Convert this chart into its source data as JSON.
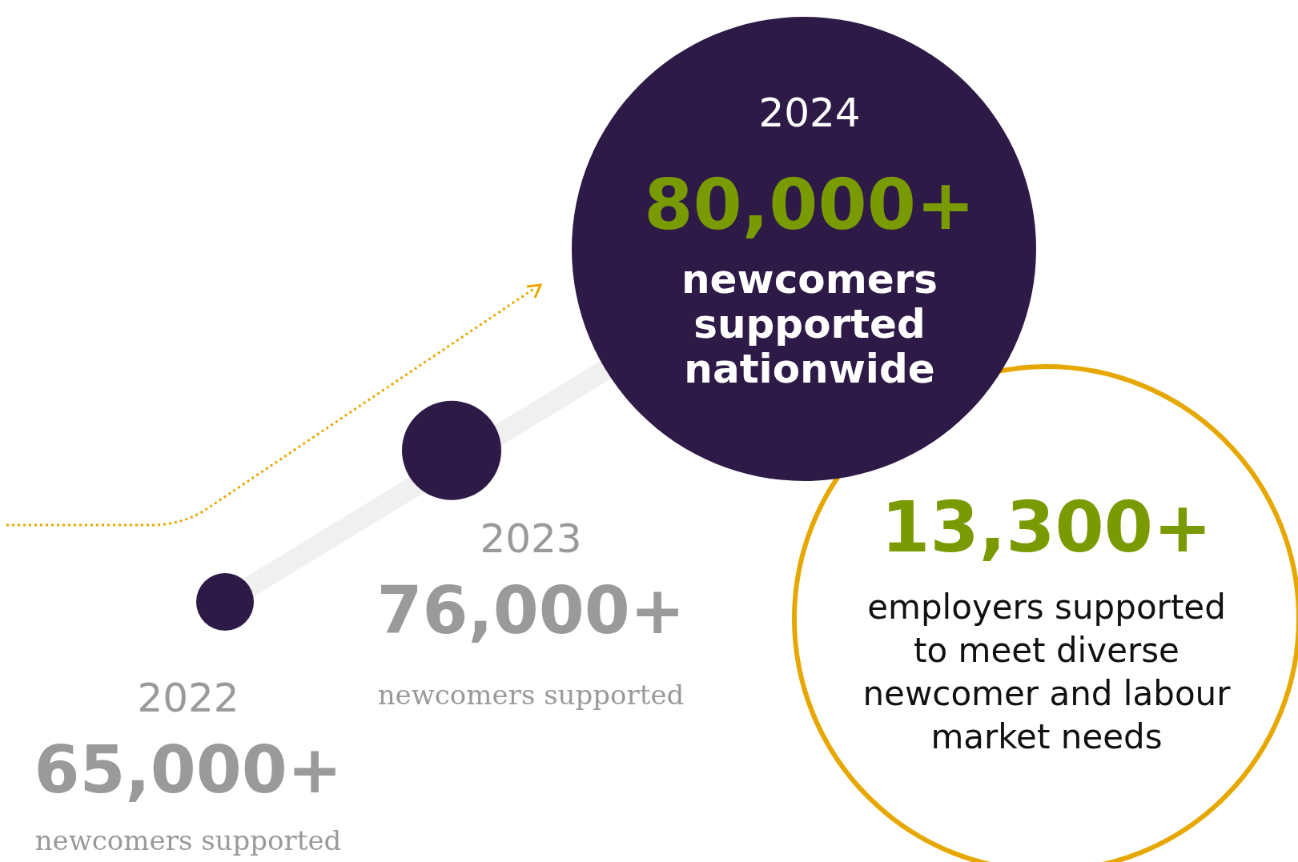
{
  "chart_data": {
    "type": "other",
    "categories": [
      "2022",
      "2023",
      "2024"
    ],
    "values": [
      65000,
      76000,
      80000
    ],
    "value_labels": [
      "65,000+",
      "76,000+",
      "80,000+"
    ],
    "colors": [
      "#2e1a47",
      "#2e1a47",
      "#2e1a47"
    ],
    "annotations": [
      "newcomers supported",
      "newcomers supported",
      "newcomers supported nationwide",
      "13,300+",
      "employers supported to meet diverse newcomer and labour market needs"
    ]
  }
}
